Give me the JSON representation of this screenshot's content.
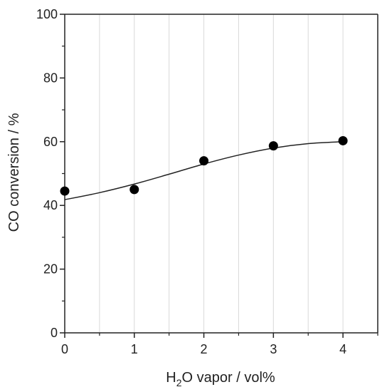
{
  "chart_data": {
    "type": "scatter",
    "xlabel_parts": [
      "H",
      "2",
      "O vapor / vol%"
    ],
    "ylabel": "CO conversion / %",
    "xlim": [
      0,
      4.5
    ],
    "ylim": [
      0,
      100
    ],
    "x_ticks": [
      0,
      1,
      2,
      3,
      4
    ],
    "x_tick_labels": [
      "0",
      "1",
      "2",
      "3",
      "4"
    ],
    "y_ticks": [
      0,
      20,
      40,
      60,
      80,
      100
    ],
    "y_tick_labels": [
      "0",
      "20",
      "40",
      "60",
      "80",
      "100"
    ],
    "x_minor_ticks": [
      0.5,
      1.5,
      2.5,
      3.5,
      4.5
    ],
    "y_minor_ticks": [
      10,
      30,
      50,
      70,
      90
    ],
    "grid": "vertical",
    "points": [
      {
        "x": 0,
        "y": 44.5
      },
      {
        "x": 1,
        "y": 45.0
      },
      {
        "x": 2,
        "y": 54.0
      },
      {
        "x": 3,
        "y": 58.7
      },
      {
        "x": 4,
        "y": 60.3
      }
    ],
    "trend_line": [
      {
        "x": 0,
        "y": 41.8
      },
      {
        "x": 0.5,
        "y": 44.0
      },
      {
        "x": 1,
        "y": 46.7
      },
      {
        "x": 1.5,
        "y": 49.8
      },
      {
        "x": 2,
        "y": 53.0
      },
      {
        "x": 2.5,
        "y": 55.8
      },
      {
        "x": 3,
        "y": 58.0
      },
      {
        "x": 3.5,
        "y": 59.4
      },
      {
        "x": 4,
        "y": 60.0
      }
    ],
    "colors": {
      "marker": "#000000",
      "line": "#222222",
      "axis": "#222222",
      "grid": "#d9d9d9"
    }
  }
}
